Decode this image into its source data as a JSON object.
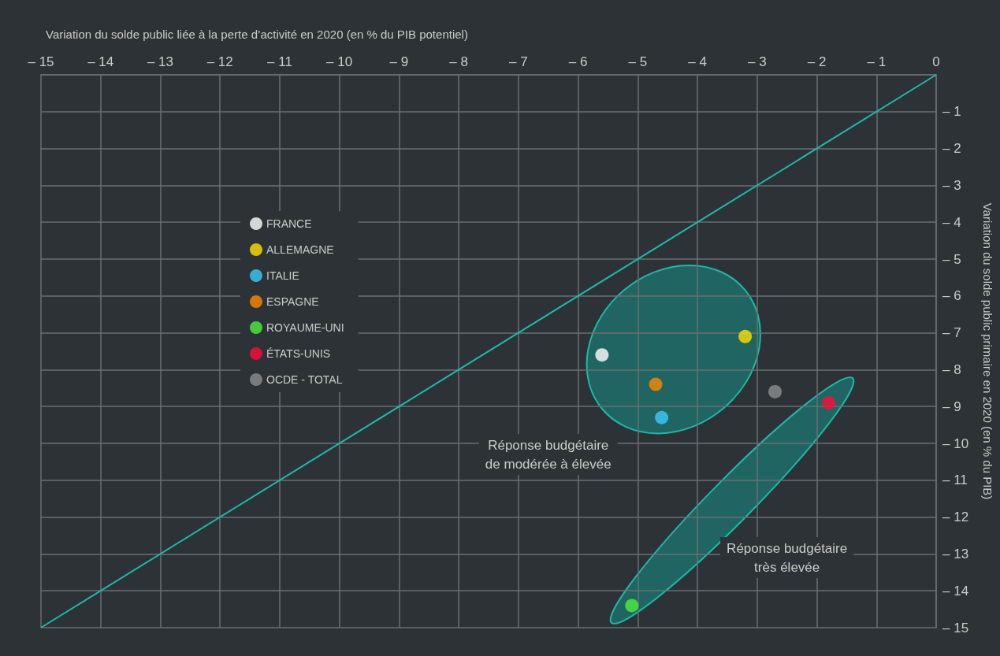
{
  "chart_data": {
    "type": "scatter",
    "xlabel": "Variation du solde public liée à la perte d’activité en 2020 (en % du PIB potentiel)",
    "ylabel": "Variation du solde public primaire en 2020 (en % du PIB)",
    "xlim": [
      -15,
      0
    ],
    "xticks": [
      {
        "value": -15,
        "label": "– 15"
      },
      {
        "value": -14,
        "label": "– 14"
      },
      {
        "value": -13,
        "label": "– 13"
      },
      {
        "value": -12,
        "label": "– 12"
      },
      {
        "value": -11,
        "label": "– 11"
      },
      {
        "value": -10,
        "label": "– 10"
      },
      {
        "value": -9,
        "label": "– 9"
      },
      {
        "value": -8,
        "label": "– 8"
      },
      {
        "value": -7,
        "label": "– 7"
      },
      {
        "value": -6,
        "label": "– 6"
      },
      {
        "value": -5,
        "label": "– 5"
      },
      {
        "value": -4,
        "label": "– 4"
      },
      {
        "value": -3,
        "label": "– 3"
      },
      {
        "value": -2,
        "label": "– 2"
      },
      {
        "value": -1,
        "label": "– 1"
      },
      0
    ],
    "ylim": [
      -15,
      0
    ],
    "yticks": [
      {
        "value": -15,
        "label": "– 15"
      },
      {
        "value": -14,
        "label": "– 14"
      },
      {
        "value": -13,
        "label": "– 13"
      },
      {
        "value": -12,
        "label": "– 12"
      },
      {
        "value": -11,
        "label": "– 11"
      },
      {
        "value": -10,
        "label": "– 10"
      },
      {
        "value": -9,
        "label": "– 9"
      },
      {
        "value": -8,
        "label": "– 8"
      },
      {
        "value": -7,
        "label": "– 7"
      },
      {
        "value": -6,
        "label": "– 6"
      },
      {
        "value": -5,
        "label": "– 5"
      },
      {
        "value": -4,
        "label": "– 4"
      },
      {
        "value": -3,
        "label": "– 3"
      },
      {
        "value": -2,
        "label": "– 2"
      },
      {
        "value": -1,
        "label": "– 1"
      },
      {
        "value": 0,
        "label": null
      }
    ],
    "grid": true,
    "legend": "left",
    "marker": "circle",
    "line_style": "solid",
    "series": [
      {
        "name": "FRANCE",
        "color": "#ffffff",
        "x": [
          -5.6
        ],
        "values": [
          -7.6
        ]
      },
      {
        "name": "ALLEMAGNE",
        "color": "#ffe000",
        "x": [
          -3.2
        ],
        "values": [
          -7.1
        ]
      },
      {
        "name": "ITALIE",
        "color": "#3ccaff",
        "x": [
          -4.6
        ],
        "values": [
          -9.3
        ]
      },
      {
        "name": "ESPAGNE",
        "color": "#ff8a00",
        "x": [
          -4.7
        ],
        "values": [
          -8.4
        ]
      },
      {
        "name": "ROYAUME-UNI",
        "color": "#4cf03c",
        "x": [
          -5.1
        ],
        "values": [
          -14.4
        ]
      },
      {
        "name": "ÉTATS-UNIS",
        "color": "#ff0a3c",
        "x": [
          -1.8
        ],
        "values": [
          -8.9
        ]
      },
      {
        "name": "OCDE - TOTAL",
        "color": "#8c8f92",
        "x": [
          -2.7
        ],
        "values": [
          -8.6
        ]
      },
      {
        "type": "line",
        "color": "#1fb8a8",
        "marker": "none",
        "x": [
          -15,
          0
        ],
        "values": [
          -15,
          0
        ]
      }
    ],
    "annotations": [
      "Réponse budgétaire\nde modérée à élevée",
      "Réponse budgétaire\ntrès élevée"
    ]
  }
}
